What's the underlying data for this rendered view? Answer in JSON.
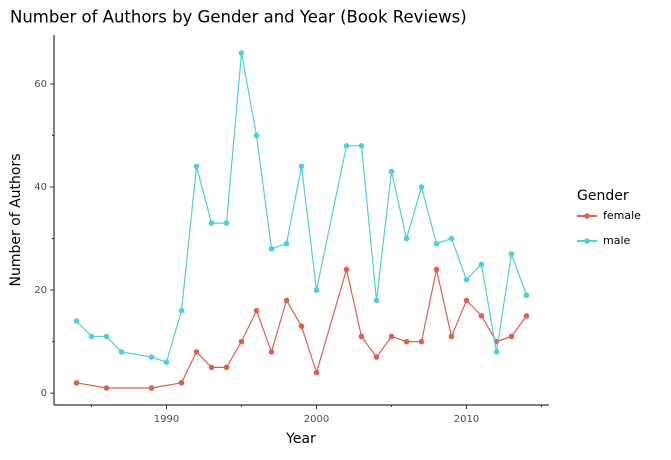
{
  "chart_data": {
    "type": "line",
    "title": "Number of Authors by Gender and Year (Book Reviews)",
    "x_label": "Year",
    "y_label": "Number of Authors",
    "legend_title": "Gender",
    "series": [
      {
        "name": "female",
        "color": "#d9614f",
        "x": [
          1984,
          1986,
          1989,
          1991,
          1992,
          1993,
          1994,
          1995,
          1996,
          1997,
          1998,
          1999,
          2000,
          2002,
          2003,
          2004,
          2005,
          2006,
          2007,
          2008,
          2009,
          2010,
          2011,
          2012,
          2013,
          2014
        ],
        "values": [
          2,
          1,
          1,
          2,
          8,
          5,
          5,
          10,
          16,
          8,
          18,
          13,
          4,
          24,
          11,
          7,
          11,
          10,
          10,
          24,
          11,
          18,
          15,
          10,
          11,
          15
        ]
      },
      {
        "name": "male",
        "color": "#4fcfd6",
        "x": [
          1984,
          1985,
          1986,
          1987,
          1989,
          1990,
          1991,
          1992,
          1993,
          1994,
          1995,
          1996,
          1997,
          1998,
          1999,
          2000,
          2002,
          2003,
          2004,
          2005,
          2006,
          2007,
          2008,
          2009,
          2010,
          2011,
          2012,
          2013,
          2014
        ],
        "values": [
          14,
          11,
          11,
          8,
          7,
          6,
          16,
          44,
          33,
          33,
          66,
          50,
          28,
          29,
          44,
          20,
          48,
          48,
          18,
          43,
          30,
          40,
          29,
          30,
          22,
          25,
          8,
          27,
          19
        ]
      }
    ],
    "xlim": [
      1982.5,
      2015.5
    ],
    "xticks": [
      1990,
      2000,
      2010
    ],
    "xticks_minor": [
      1985,
      1995,
      2005,
      2015
    ],
    "ylim": [
      -2.3,
      69.5
    ],
    "yticks": [
      0,
      20,
      40,
      60
    ],
    "yticks_minor": [
      10,
      30,
      50
    ],
    "legend": "right"
  }
}
